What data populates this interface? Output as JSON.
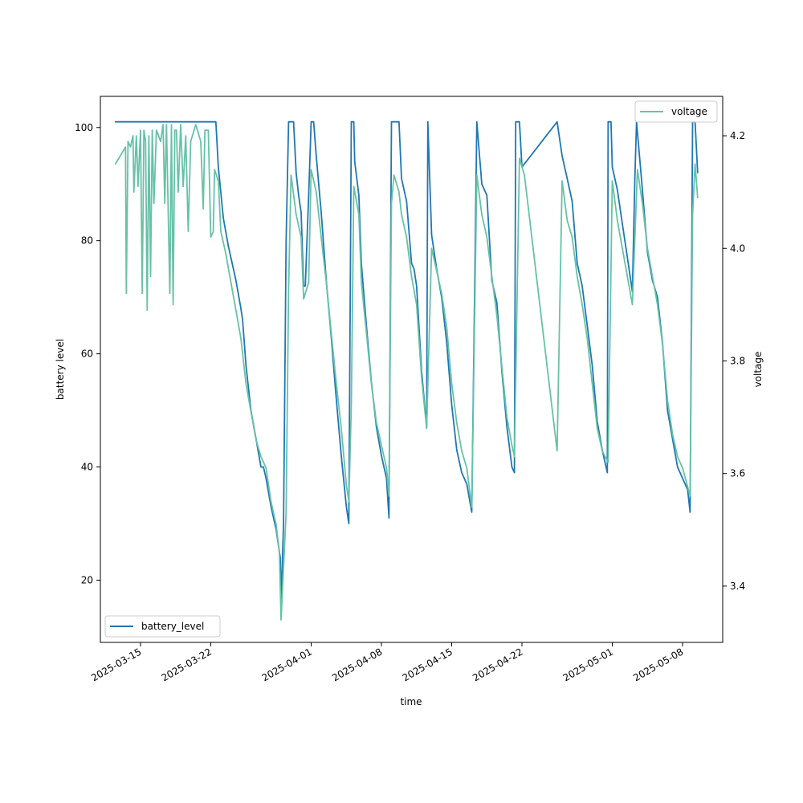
{
  "chart_data": {
    "type": "line",
    "title": "",
    "xlabel": "time",
    "ylabel_left": "battery level",
    "ylabel_right": "voltage",
    "x_range": [
      "2025-03-11T00:00",
      "2025-05-12T00:00"
    ],
    "ylim_left": [
      9,
      105.5
    ],
    "ylim_right": [
      3.3,
      4.27
    ],
    "x_ticks": [
      "2025-03-15",
      "2025-03-22",
      "2025-04-01",
      "2025-04-08",
      "2025-04-15",
      "2025-04-22",
      "2025-05-01",
      "2025-05-08"
    ],
    "y_ticks_left": [
      20,
      40,
      60,
      80,
      100
    ],
    "y_ticks_right": [
      "3.4",
      "3.6",
      "3.8",
      "4.0",
      "4.2"
    ],
    "grid": false,
    "legends": [
      {
        "entry": "battery_level",
        "placement": "lower-left"
      },
      {
        "entry": "voltage",
        "placement": "upper-right"
      }
    ],
    "colors": {
      "battery_level": "#1f77b4",
      "voltage": "#66c2a5"
    },
    "series": [
      {
        "name": "battery_level",
        "axis": "left",
        "points": [
          [
            "2025-03-12T12:00",
            101
          ],
          [
            "2025-03-22T12:00",
            101
          ],
          [
            "2025-03-22T18:00",
            93
          ],
          [
            "2025-03-23T06:00",
            84
          ],
          [
            "2025-03-23T18:00",
            79
          ],
          [
            "2025-03-24T12:00",
            73
          ],
          [
            "2025-03-25T00:00",
            68
          ],
          [
            "2025-03-25T04:00",
            66
          ],
          [
            "2025-03-25T12:00",
            58
          ],
          [
            "2025-03-26T00:00",
            50
          ],
          [
            "2025-03-26T12:00",
            45
          ],
          [
            "2025-03-27T00:00",
            40
          ],
          [
            "2025-03-27T06:00",
            40
          ],
          [
            "2025-03-27T12:00",
            38
          ],
          [
            "2025-03-28T00:00",
            33
          ],
          [
            "2025-03-28T12:00",
            29
          ],
          [
            "2025-03-28T22:00",
            24
          ],
          [
            "2025-03-29T00:00",
            16
          ],
          [
            "2025-03-29T06:00",
            30
          ],
          [
            "2025-03-29T12:00",
            80
          ],
          [
            "2025-03-29T18:00",
            101
          ],
          [
            "2025-03-30T06:00",
            101
          ],
          [
            "2025-03-30T12:00",
            92
          ],
          [
            "2025-03-30T18:00",
            88
          ],
          [
            "2025-03-31T00:00",
            85
          ],
          [
            "2025-03-31T06:00",
            72
          ],
          [
            "2025-03-31T10:00",
            72
          ],
          [
            "2025-03-31T18:00",
            88
          ],
          [
            "2025-04-01T00:00",
            101
          ],
          [
            "2025-04-01T06:00",
            101
          ],
          [
            "2025-04-01T12:00",
            95
          ],
          [
            "2025-04-02T00:00",
            85
          ],
          [
            "2025-04-02T12:00",
            73
          ],
          [
            "2025-04-03T00:00",
            63
          ],
          [
            "2025-04-03T12:00",
            52
          ],
          [
            "2025-04-04T00:00",
            42
          ],
          [
            "2025-04-04T12:00",
            33
          ],
          [
            "2025-04-04T18:00",
            30
          ],
          [
            "2025-04-05T00:00",
            101
          ],
          [
            "2025-04-05T06:00",
            101
          ],
          [
            "2025-04-05T08:00",
            94
          ],
          [
            "2025-04-05T18:00",
            88
          ],
          [
            "2025-04-06T00:00",
            76
          ],
          [
            "2025-04-06T12:00",
            65
          ],
          [
            "2025-04-07T00:00",
            55
          ],
          [
            "2025-04-07T12:00",
            47
          ],
          [
            "2025-04-08T00:00",
            42
          ],
          [
            "2025-04-08T12:00",
            38
          ],
          [
            "2025-04-08T18:00",
            31
          ],
          [
            "2025-04-09T00:00",
            101
          ],
          [
            "2025-04-09T18:00",
            101
          ],
          [
            "2025-04-10T00:00",
            91
          ],
          [
            "2025-04-10T12:00",
            87
          ],
          [
            "2025-04-11T00:00",
            76
          ],
          [
            "2025-04-11T06:00",
            75
          ],
          [
            "2025-04-11T12:00",
            72
          ],
          [
            "2025-04-12T00:00",
            57
          ],
          [
            "2025-04-12T12:00",
            47
          ],
          [
            "2025-04-12T15:00",
            101
          ],
          [
            "2025-04-13T00:00",
            81
          ],
          [
            "2025-04-13T12:00",
            75
          ],
          [
            "2025-04-14T00:00",
            70
          ],
          [
            "2025-04-14T12:00",
            62
          ],
          [
            "2025-04-15T00:00",
            51
          ],
          [
            "2025-04-15T12:00",
            43
          ],
          [
            "2025-04-16T00:00",
            39
          ],
          [
            "2025-04-16T12:00",
            37
          ],
          [
            "2025-04-17T00:00",
            32
          ],
          [
            "2025-04-17T12:00",
            101
          ],
          [
            "2025-04-18T00:00",
            90
          ],
          [
            "2025-04-18T12:00",
            88
          ],
          [
            "2025-04-19T00:00",
            73
          ],
          [
            "2025-04-19T12:00",
            69
          ],
          [
            "2025-04-20T00:00",
            57
          ],
          [
            "2025-04-20T12:00",
            47
          ],
          [
            "2025-04-21T00:00",
            40
          ],
          [
            "2025-04-21T06:00",
            39
          ],
          [
            "2025-04-21T09:00",
            101
          ],
          [
            "2025-04-21T18:00",
            101
          ],
          [
            "2025-04-22T00:00",
            93
          ],
          [
            "2025-04-25T12:00",
            101
          ],
          [
            "2025-04-26T00:00",
            95
          ],
          [
            "2025-04-26T12:00",
            91
          ],
          [
            "2025-04-27T00:00",
            87
          ],
          [
            "2025-04-27T12:00",
            76
          ],
          [
            "2025-04-28T00:00",
            72
          ],
          [
            "2025-04-28T12:00",
            65
          ],
          [
            "2025-04-29T00:00",
            58
          ],
          [
            "2025-04-29T12:00",
            48
          ],
          [
            "2025-04-30T00:00",
            43
          ],
          [
            "2025-04-30T12:00",
            39
          ],
          [
            "2025-04-30T14:00",
            101
          ],
          [
            "2025-04-30T21:00",
            101
          ],
          [
            "2025-05-01T00:00",
            93
          ],
          [
            "2025-05-01T12:00",
            89
          ],
          [
            "2025-05-02T00:00",
            83
          ],
          [
            "2025-05-02T12:00",
            77
          ],
          [
            "2025-05-02T18:00",
            74
          ],
          [
            "2025-05-03T00:00",
            71
          ],
          [
            "2025-05-03T06:00",
            91
          ],
          [
            "2025-05-03T10:00",
            101
          ],
          [
            "2025-05-04T00:00",
            89
          ],
          [
            "2025-05-04T12:00",
            78
          ],
          [
            "2025-05-05T00:00",
            73
          ],
          [
            "2025-05-05T12:00",
            70
          ],
          [
            "2025-05-06T00:00",
            62
          ],
          [
            "2025-05-06T12:00",
            50
          ],
          [
            "2025-05-07T00:00",
            45
          ],
          [
            "2025-05-07T12:00",
            40
          ],
          [
            "2025-05-08T00:00",
            38
          ],
          [
            "2025-05-08T12:00",
            36
          ],
          [
            "2025-05-08T18:00",
            32
          ],
          [
            "2025-05-09T00:00",
            101
          ],
          [
            "2025-05-09T06:00",
            101
          ],
          [
            "2025-05-09T12:00",
            92
          ]
        ]
      },
      {
        "name": "voltage",
        "axis": "right",
        "points": [
          [
            "2025-03-12T12:00",
            4.15
          ],
          [
            "2025-03-13T12:00",
            4.18
          ],
          [
            "2025-03-13T14:00",
            3.92
          ],
          [
            "2025-03-13T18:00",
            4.19
          ],
          [
            "2025-03-14T00:00",
            4.18
          ],
          [
            "2025-03-14T06:00",
            4.2
          ],
          [
            "2025-03-14T08:00",
            4.1
          ],
          [
            "2025-03-14T14:00",
            4.2
          ],
          [
            "2025-03-14T18:00",
            4.11
          ],
          [
            "2025-03-15T00:00",
            4.21
          ],
          [
            "2025-03-15T04:00",
            3.92
          ],
          [
            "2025-03-15T08:00",
            4.21
          ],
          [
            "2025-03-15T12:00",
            4.19
          ],
          [
            "2025-03-15T16:00",
            3.89
          ],
          [
            "2025-03-15T20:00",
            4.2
          ],
          [
            "2025-03-16T00:00",
            3.95
          ],
          [
            "2025-03-16T04:00",
            4.21
          ],
          [
            "2025-03-16T08:00",
            4.08
          ],
          [
            "2025-03-16T14:00",
            4.21
          ],
          [
            "2025-03-17T00:00",
            4.19
          ],
          [
            "2025-03-17T06:00",
            4.22
          ],
          [
            "2025-03-17T10:00",
            4.08
          ],
          [
            "2025-03-17T14:00",
            4.22
          ],
          [
            "2025-03-17T22:00",
            3.92
          ],
          [
            "2025-03-18T02:00",
            4.22
          ],
          [
            "2025-03-18T06:00",
            3.9
          ],
          [
            "2025-03-18T10:00",
            4.21
          ],
          [
            "2025-03-18T14:00",
            4.21
          ],
          [
            "2025-03-18T18:00",
            4.1
          ],
          [
            "2025-03-19T00:00",
            4.22
          ],
          [
            "2025-03-19T06:00",
            4.11
          ],
          [
            "2025-03-19T12:00",
            4.2
          ],
          [
            "2025-03-19T18:00",
            4.03
          ],
          [
            "2025-03-20T00:00",
            4.19
          ],
          [
            "2025-03-20T12:00",
            4.22
          ],
          [
            "2025-03-21T00:00",
            4.19
          ],
          [
            "2025-03-21T06:00",
            4.07
          ],
          [
            "2025-03-21T10:00",
            4.21
          ],
          [
            "2025-03-21T18:00",
            4.21
          ],
          [
            "2025-03-22T00:00",
            4.02
          ],
          [
            "2025-03-22T06:00",
            4.03
          ],
          [
            "2025-03-22T09:00",
            4.14
          ],
          [
            "2025-03-22T18:00",
            4.12
          ],
          [
            "2025-03-23T00:00",
            4.03
          ],
          [
            "2025-03-23T12:00",
            3.99
          ],
          [
            "2025-03-24T00:00",
            3.94
          ],
          [
            "2025-03-24T12:00",
            3.89
          ],
          [
            "2025-03-25T00:00",
            3.84
          ],
          [
            "2025-03-25T12:00",
            3.76
          ],
          [
            "2025-03-26T00:00",
            3.71
          ],
          [
            "2025-03-26T12:00",
            3.66
          ],
          [
            "2025-03-27T00:00",
            3.63
          ],
          [
            "2025-03-27T12:00",
            3.61
          ],
          [
            "2025-03-28T00:00",
            3.55
          ],
          [
            "2025-03-28T12:00",
            3.51
          ],
          [
            "2025-03-28T20:00",
            3.46
          ],
          [
            "2025-03-29T00:00",
            3.34
          ],
          [
            "2025-03-29T12:00",
            3.53
          ],
          [
            "2025-03-29T18:00",
            3.93
          ],
          [
            "2025-03-30T00:00",
            4.13
          ],
          [
            "2025-03-30T12:00",
            4.06
          ],
          [
            "2025-03-31T00:00",
            4.02
          ],
          [
            "2025-03-31T06:00",
            3.91
          ],
          [
            "2025-03-31T18:00",
            3.94
          ],
          [
            "2025-04-01T00:00",
            4.14
          ],
          [
            "2025-04-01T12:00",
            4.1
          ],
          [
            "2025-04-02T00:00",
            4.02
          ],
          [
            "2025-04-02T12:00",
            3.94
          ],
          [
            "2025-04-03T00:00",
            3.85
          ],
          [
            "2025-04-03T12:00",
            3.76
          ],
          [
            "2025-04-04T00:00",
            3.68
          ],
          [
            "2025-04-04T12:00",
            3.58
          ],
          [
            "2025-04-04T18:00",
            3.55
          ],
          [
            "2025-04-05T00:00",
            3.72
          ],
          [
            "2025-04-05T06:00",
            4.11
          ],
          [
            "2025-04-05T18:00",
            4.06
          ],
          [
            "2025-04-06T00:00",
            3.94
          ],
          [
            "2025-04-06T12:00",
            3.85
          ],
          [
            "2025-04-07T00:00",
            3.76
          ],
          [
            "2025-04-07T12:00",
            3.69
          ],
          [
            "2025-04-08T00:00",
            3.65
          ],
          [
            "2025-04-08T12:00",
            3.61
          ],
          [
            "2025-04-08T18:00",
            3.56
          ],
          [
            "2025-04-09T00:00",
            4.08
          ],
          [
            "2025-04-09T06:00",
            4.13
          ],
          [
            "2025-04-09T18:00",
            4.1
          ],
          [
            "2025-04-10T00:00",
            4.06
          ],
          [
            "2025-04-10T12:00",
            4.02
          ],
          [
            "2025-04-11T00:00",
            3.95
          ],
          [
            "2025-04-11T12:00",
            3.9
          ],
          [
            "2025-04-12T00:00",
            3.77
          ],
          [
            "2025-04-12T12:00",
            3.68
          ],
          [
            "2025-04-13T00:00",
            4.0
          ],
          [
            "2025-04-13T12:00",
            3.96
          ],
          [
            "2025-04-14T00:00",
            3.92
          ],
          [
            "2025-04-14T12:00",
            3.86
          ],
          [
            "2025-04-15T00:00",
            3.76
          ],
          [
            "2025-04-15T12:00",
            3.69
          ],
          [
            "2025-04-16T00:00",
            3.64
          ],
          [
            "2025-04-16T12:00",
            3.61
          ],
          [
            "2025-04-17T00:00",
            3.54
          ],
          [
            "2025-04-17T12:00",
            4.13
          ],
          [
            "2025-04-18T00:00",
            4.06
          ],
          [
            "2025-04-18T12:00",
            4.02
          ],
          [
            "2025-04-19T00:00",
            3.95
          ],
          [
            "2025-04-19T12:00",
            3.88
          ],
          [
            "2025-04-20T00:00",
            3.79
          ],
          [
            "2025-04-20T12:00",
            3.7
          ],
          [
            "2025-04-21T00:00",
            3.65
          ],
          [
            "2025-04-21T06:00",
            3.63
          ],
          [
            "2025-04-21T18:00",
            4.16
          ],
          [
            "2025-04-22T06:00",
            4.13
          ],
          [
            "2025-04-25T12:00",
            3.64
          ],
          [
            "2025-04-26T00:00",
            4.12
          ],
          [
            "2025-04-26T12:00",
            4.05
          ],
          [
            "2025-04-27T00:00",
            4.02
          ],
          [
            "2025-04-27T12:00",
            3.95
          ],
          [
            "2025-04-28T00:00",
            3.9
          ],
          [
            "2025-04-28T12:00",
            3.84
          ],
          [
            "2025-04-29T00:00",
            3.76
          ],
          [
            "2025-04-29T12:00",
            3.68
          ],
          [
            "2025-04-30T00:00",
            3.64
          ],
          [
            "2025-04-30T14:00",
            3.62
          ],
          [
            "2025-05-01T00:00",
            4.12
          ],
          [
            "2025-05-01T12:00",
            4.05
          ],
          [
            "2025-05-02T00:00",
            4.0
          ],
          [
            "2025-05-02T12:00",
            3.95
          ],
          [
            "2025-05-03T00:00",
            3.9
          ],
          [
            "2025-05-03T12:00",
            4.14
          ],
          [
            "2025-05-04T00:00",
            4.08
          ],
          [
            "2025-05-04T12:00",
            4.0
          ],
          [
            "2025-05-05T00:00",
            3.95
          ],
          [
            "2025-05-05T12:00",
            3.9
          ],
          [
            "2025-05-06T00:00",
            3.83
          ],
          [
            "2025-05-06T12:00",
            3.73
          ],
          [
            "2025-05-07T00:00",
            3.67
          ],
          [
            "2025-05-07T12:00",
            3.63
          ],
          [
            "2025-05-08T00:00",
            3.61
          ],
          [
            "2025-05-08T18:00",
            3.56
          ],
          [
            "2025-05-09T00:00",
            4.06
          ],
          [
            "2025-05-09T06:00",
            4.15
          ],
          [
            "2025-05-09T12:00",
            4.09
          ]
        ]
      }
    ]
  }
}
